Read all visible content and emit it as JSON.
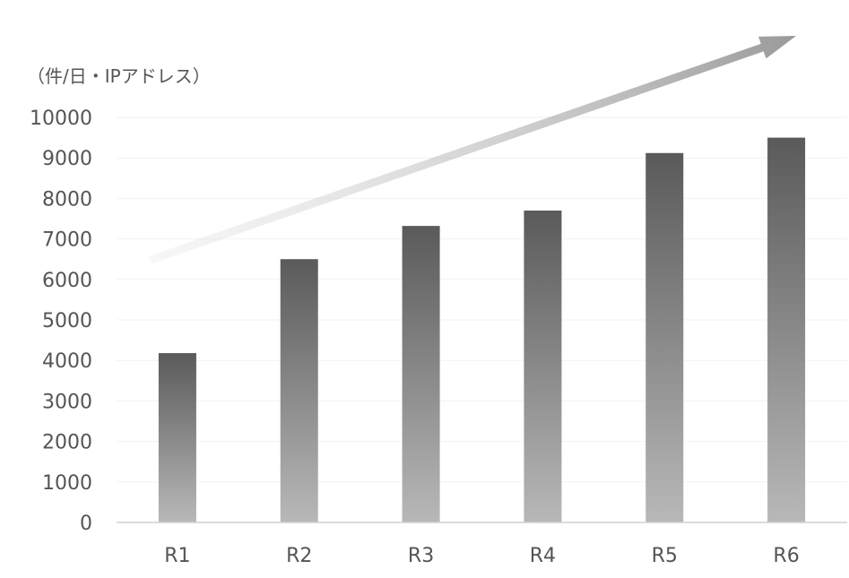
{
  "chart_data": {
    "type": "bar",
    "unit_label": "（件/日・IPアドレス）",
    "categories": [
      "R1",
      "R2",
      "R3",
      "R4",
      "R5",
      "R6"
    ],
    "values": [
      4180,
      6500,
      7320,
      7700,
      9120,
      9500
    ],
    "y_ticks": [
      "0",
      "1000",
      "2000",
      "3000",
      "4000",
      "5000",
      "6000",
      "7000",
      "8000",
      "9000",
      "10000"
    ],
    "ylim": [
      0,
      10000
    ],
    "grid": false,
    "legend": "none",
    "bar_color_top": "#5a5a5a",
    "bar_color_bottom": "#b5b5b5",
    "trend_arrow": true
  }
}
